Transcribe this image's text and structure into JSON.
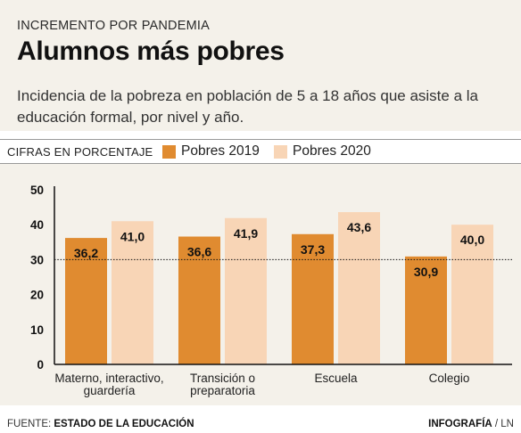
{
  "header": {
    "kicker": "INCREMENTO POR PANDEMIA",
    "title": "Alumnos más pobres",
    "subtitle": "Incidencia de la pobreza en población de 5 a 18 años que asiste a la educación formal, por nivel y año."
  },
  "legend": {
    "units": "CIFRAS EN PORCENTAJE",
    "items": [
      {
        "label": "Pobres 2019",
        "color": "#e08b30"
      },
      {
        "label": "Pobres 2020",
        "color": "#f8d5b6"
      }
    ]
  },
  "chart_data": {
    "type": "bar",
    "categories": [
      [
        "Materno, interactivo,",
        "guardería"
      ],
      [
        "Transición o",
        "preparatoria"
      ],
      [
        "Escuela"
      ],
      [
        "Colegio"
      ]
    ],
    "series": [
      {
        "name": "Pobres 2019",
        "values": [
          36.2,
          36.6,
          37.3,
          30.9
        ],
        "labels": [
          "36,2",
          "36,6",
          "37,3",
          "30,9"
        ],
        "color": "#e08b30"
      },
      {
        "name": "Pobres 2020",
        "values": [
          41.0,
          41.9,
          43.6,
          40.0
        ],
        "labels": [
          "41,0",
          "41,9",
          "43,6",
          "40,0"
        ],
        "color": "#f8d5b6"
      }
    ],
    "ylim": [
      0,
      50
    ],
    "yticks": [
      0,
      10,
      20,
      30,
      40,
      50
    ],
    "reference_line": 30,
    "grid": false
  },
  "footer": {
    "source_prefix": "FUENTE: ",
    "source": "ESTADO DE LA EDUCACIÓN",
    "credit_strong": "INFOGRAFÍA",
    "credit_rest": " / LN"
  }
}
